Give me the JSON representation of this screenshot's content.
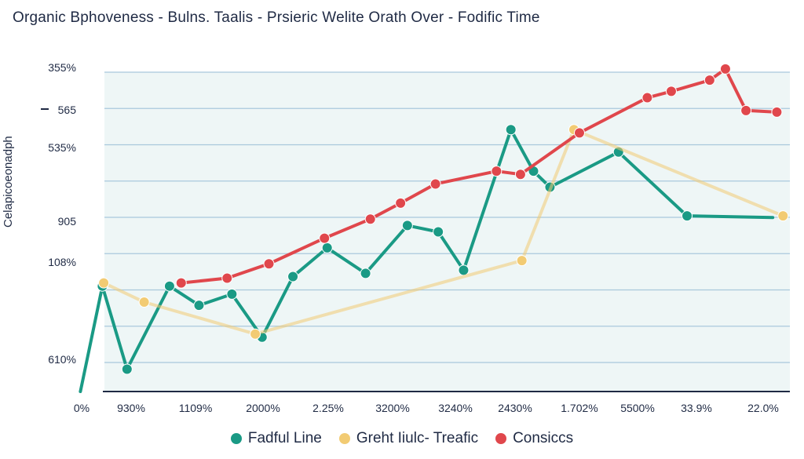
{
  "chart_data": {
    "type": "line",
    "title": "Organic Bphoveness - Bulns. Taalis - Prsieric Welite Orath Over - Fodific Time",
    "ylabel": "Celapicoeonadph",
    "xlabel": "",
    "y_tick_labels": [
      "355%",
      "565",
      "535%",
      "905",
      "108%",
      "610%"
    ],
    "x_tick_labels": [
      "0%",
      "930%",
      "1109%",
      "2000%",
      "2.25%",
      "3200%",
      "3240%",
      "2430%",
      "1.702%",
      "5500%",
      "33.9%",
      "22.0%"
    ],
    "ylim": [
      0,
      100
    ],
    "xlim": [
      0,
      100
    ],
    "grid": true,
    "legend_position": "bottom",
    "background_color": "#eef6f6",
    "series": [
      {
        "name": "Fadful Line",
        "color": "#1a9a85",
        "points": [
          [
            -3.5,
            0
          ],
          [
            -0.3,
            33
          ],
          [
            3.3,
            7
          ],
          [
            9.5,
            33
          ],
          [
            13.8,
            27
          ],
          [
            18.6,
            30.5
          ],
          [
            23,
            17
          ],
          [
            27.5,
            36
          ],
          [
            32.5,
            45
          ],
          [
            38.1,
            37
          ],
          [
            44.2,
            52
          ],
          [
            48.7,
            50
          ],
          [
            52.4,
            38
          ],
          [
            59.3,
            82
          ],
          [
            62.6,
            69
          ],
          [
            65,
            64
          ],
          [
            75,
            75
          ],
          [
            85,
            55
          ],
          [
            97.5,
            54.5
          ]
        ]
      },
      {
        "name": "Greht Iiulc- Treafic",
        "color": "#f2cb73",
        "points": [
          [
            -0.1,
            34
          ],
          [
            5.8,
            28
          ],
          [
            22,
            18
          ],
          [
            60.9,
            41
          ],
          [
            68.5,
            82
          ],
          [
            99,
            55
          ]
        ]
      },
      {
        "name": "Consiccs",
        "color": "#e0474c",
        "points": [
          [
            11.2,
            34
          ],
          [
            17.9,
            35.5
          ],
          [
            24,
            40
          ],
          [
            32.1,
            48
          ],
          [
            38.8,
            54
          ],
          [
            43.2,
            59
          ],
          [
            48.3,
            65
          ],
          [
            57.2,
            69
          ],
          [
            60.7,
            68
          ],
          [
            69.3,
            81
          ],
          [
            79.2,
            92
          ],
          [
            82.7,
            94
          ],
          [
            88.3,
            97.5
          ],
          [
            90.6,
            101
          ],
          [
            93.6,
            88
          ],
          [
            98.1,
            87.5
          ]
        ]
      }
    ]
  },
  "legend": {
    "items": [
      {
        "label": "Fadful Line",
        "color": "#1a9a85"
      },
      {
        "label": "Greht Iiulc- Treafic",
        "color": "#f2cb73"
      },
      {
        "label": "Consiccs",
        "color": "#e0474c"
      }
    ]
  }
}
